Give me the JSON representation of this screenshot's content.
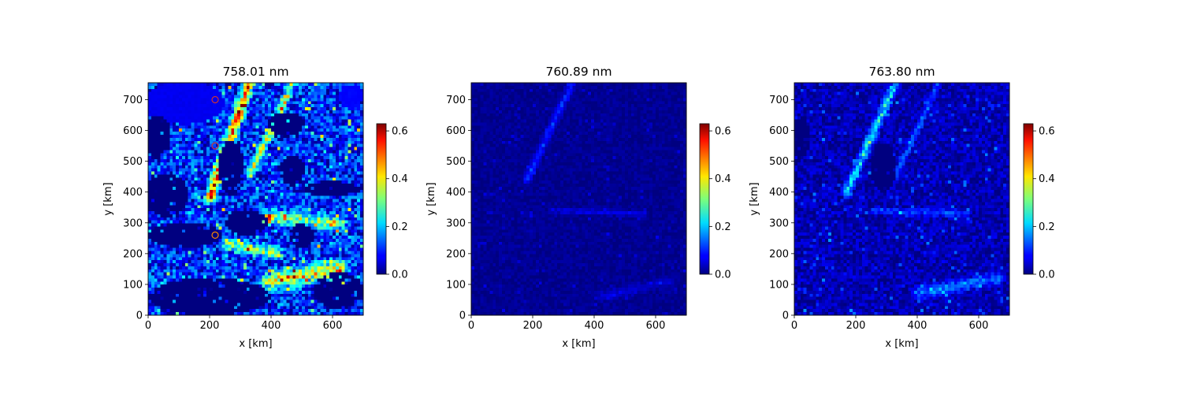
{
  "chart_data": [
    {
      "type": "heatmap",
      "title": "758.01 nm",
      "xlabel": "x [km]",
      "ylabel": "y [km]",
      "xlim": [
        0,
        700
      ],
      "ylim": [
        0,
        755
      ],
      "xticks": [
        0,
        200,
        400,
        600
      ],
      "yticks": [
        0,
        100,
        200,
        300,
        400,
        500,
        600,
        700
      ],
      "colorbar": {
        "colormap": "jet",
        "range": [
          0.0,
          0.63
        ],
        "ticks": [
          "0.0",
          "0.2",
          "0.4",
          "0.6"
        ]
      },
      "field": {
        "base": 0.1,
        "zero_regions": [
          {
            "cx": 30,
            "cy": 580,
            "rx": 45,
            "ry": 70
          },
          {
            "cx": 60,
            "cy": 390,
            "rx": 70,
            "ry": 70
          },
          {
            "cx": 270,
            "cy": 480,
            "rx": 40,
            "ry": 90
          },
          {
            "cx": 450,
            "cy": 620,
            "rx": 60,
            "ry": 40
          },
          {
            "cx": 470,
            "cy": 470,
            "rx": 40,
            "ry": 50
          },
          {
            "cx": 600,
            "cy": 410,
            "rx": 90,
            "ry": 25
          },
          {
            "cx": 120,
            "cy": 260,
            "rx": 120,
            "ry": 40
          },
          {
            "cx": 320,
            "cy": 300,
            "rx": 70,
            "ry": 40
          },
          {
            "cx": 200,
            "cy": 60,
            "rx": 200,
            "ry": 60
          },
          {
            "cx": 620,
            "cy": 80,
            "rx": 80,
            "ry": 60
          },
          {
            "cx": 500,
            "cy": 260,
            "rx": 40,
            "ry": 40
          }
        ],
        "uniform_regions": [
          {
            "cx": 120,
            "cy": 690,
            "rx": 130,
            "ry": 70,
            "value": 0.07
          },
          {
            "cx": 660,
            "cy": 710,
            "rx": 40,
            "ry": 40,
            "value": 0.08
          }
        ],
        "streaks": [
          {
            "x0": 200,
            "y0": 380,
            "x1": 330,
            "y1": 755,
            "width": 16,
            "value": 0.45
          },
          {
            "x0": 330,
            "y0": 450,
            "x1": 470,
            "y1": 755,
            "width": 12,
            "value": 0.3
          },
          {
            "x0": 260,
            "y0": 230,
            "x1": 420,
            "y1": 200,
            "width": 18,
            "value": 0.25
          },
          {
            "x0": 400,
            "y0": 110,
            "x1": 620,
            "y1": 150,
            "width": 28,
            "value": 0.32
          },
          {
            "x0": 380,
            "y0": 320,
            "x1": 620,
            "y1": 300,
            "width": 22,
            "value": 0.25
          }
        ],
        "speckle": 0.12
      },
      "markers": [
        {
          "x": 218,
          "y": 700,
          "color": "#cc3333"
        },
        {
          "x": 218,
          "y": 550,
          "color": "#cc3333"
        },
        {
          "x": 218,
          "y": 260,
          "color": "#ff8800"
        }
      ]
    },
    {
      "type": "heatmap",
      "title": "760.89 nm",
      "xlabel": "x [km]",
      "ylabel": "y [km]",
      "xlim": [
        0,
        700
      ],
      "ylim": [
        0,
        755
      ],
      "xticks": [
        0,
        200,
        400,
        600
      ],
      "yticks": [
        0,
        100,
        200,
        300,
        400,
        500,
        600,
        700
      ],
      "colorbar": {
        "colormap": "jet",
        "range": [
          0.0,
          0.63
        ],
        "ticks": [
          "0.0",
          "0.2",
          "0.4",
          "0.6"
        ]
      },
      "field": {
        "base": 0.01,
        "zero_regions": [],
        "uniform_regions": [],
        "streaks": [
          {
            "x0": 180,
            "y0": 440,
            "x1": 330,
            "y1": 755,
            "width": 12,
            "value": 0.1
          },
          {
            "x0": 260,
            "y0": 340,
            "x1": 560,
            "y1": 330,
            "width": 8,
            "value": 0.06
          },
          {
            "x0": 420,
            "y0": 60,
            "x1": 640,
            "y1": 110,
            "width": 14,
            "value": 0.05
          }
        ],
        "speckle": 0.02
      },
      "markers": []
    },
    {
      "type": "heatmap",
      "title": "763.80 nm",
      "xlabel": "x [km]",
      "ylabel": "y [km]",
      "xlim": [
        0,
        700
      ],
      "ylim": [
        0,
        755
      ],
      "xticks": [
        0,
        200,
        400,
        600
      ],
      "yticks": [
        0,
        100,
        200,
        300,
        400,
        500,
        600,
        700
      ],
      "colorbar": {
        "colormap": "jet",
        "range": [
          0.0,
          0.63
        ],
        "ticks": [
          "0.0",
          "0.2",
          "0.4",
          "0.6"
        ]
      },
      "field": {
        "base": 0.03,
        "zero_regions": [
          {
            "cx": 20,
            "cy": 580,
            "rx": 30,
            "ry": 60
          },
          {
            "cx": 290,
            "cy": 480,
            "rx": 40,
            "ry": 80
          }
        ],
        "uniform_regions": [],
        "streaks": [
          {
            "x0": 170,
            "y0": 400,
            "x1": 330,
            "y1": 755,
            "width": 14,
            "value": 0.22
          },
          {
            "x0": 330,
            "y0": 450,
            "x1": 470,
            "y1": 755,
            "width": 10,
            "value": 0.12
          },
          {
            "x0": 260,
            "y0": 340,
            "x1": 560,
            "y1": 330,
            "width": 10,
            "value": 0.1
          },
          {
            "x0": 400,
            "y0": 70,
            "x1": 660,
            "y1": 120,
            "width": 18,
            "value": 0.14
          }
        ],
        "speckle": 0.05
      },
      "markers": []
    }
  ]
}
